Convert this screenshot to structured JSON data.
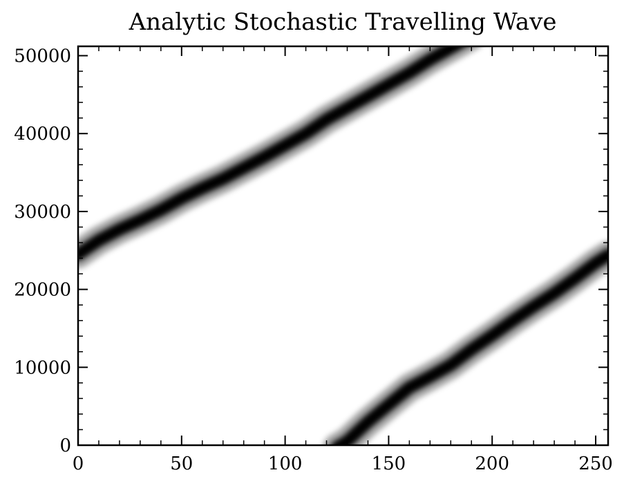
{
  "chart_data": {
    "type": "heatmap",
    "title": "Analytic Stochastic Travelling Wave",
    "xlabel": "",
    "ylabel": "",
    "xlim": [
      0,
      256
    ],
    "ylim": [
      0,
      51200
    ],
    "x_ticks": [
      0,
      50,
      100,
      150,
      200,
      250
    ],
    "x_tick_labels": [
      "0",
      "50",
      "100",
      "150",
      "200",
      "250"
    ],
    "y_ticks": [
      0,
      10000,
      20000,
      30000,
      40000,
      50000
    ],
    "y_tick_labels": [
      "0",
      "10000",
      "20000",
      "30000",
      "40000",
      "50000"
    ],
    "grid": false,
    "colormap": "grayscale (white = 0, black = max)",
    "series": [
      {
        "values": [
          [
            0,
            24500
          ],
          [
            10,
            26300
          ],
          [
            20,
            27700
          ],
          [
            30,
            28900
          ],
          [
            40,
            30200
          ],
          [
            50,
            31700
          ],
          [
            60,
            33000
          ],
          [
            70,
            34200
          ],
          [
            80,
            35600
          ],
          [
            90,
            37000
          ],
          [
            100,
            38500
          ],
          [
            110,
            40000
          ],
          [
            120,
            41800
          ],
          [
            130,
            43300
          ],
          [
            140,
            44800
          ],
          [
            150,
            46300
          ],
          [
            160,
            47800
          ],
          [
            170,
            49500
          ],
          [
            180,
            51000
          ],
          [
            190,
            52500
          ]
        ]
      },
      {
        "values": [
          [
            125,
            -300
          ],
          [
            130,
            500
          ],
          [
            140,
            3000
          ],
          [
            150,
            5200
          ],
          [
            160,
            7400
          ],
          [
            170,
            8800
          ],
          [
            180,
            10300
          ],
          [
            190,
            12300
          ],
          [
            200,
            14100
          ],
          [
            210,
            16000
          ],
          [
            220,
            17800
          ],
          [
            230,
            19500
          ],
          [
            240,
            21400
          ],
          [
            250,
            23400
          ],
          [
            256,
            24400
          ]
        ]
      }
    ],
    "band_width_y": 1500
  }
}
